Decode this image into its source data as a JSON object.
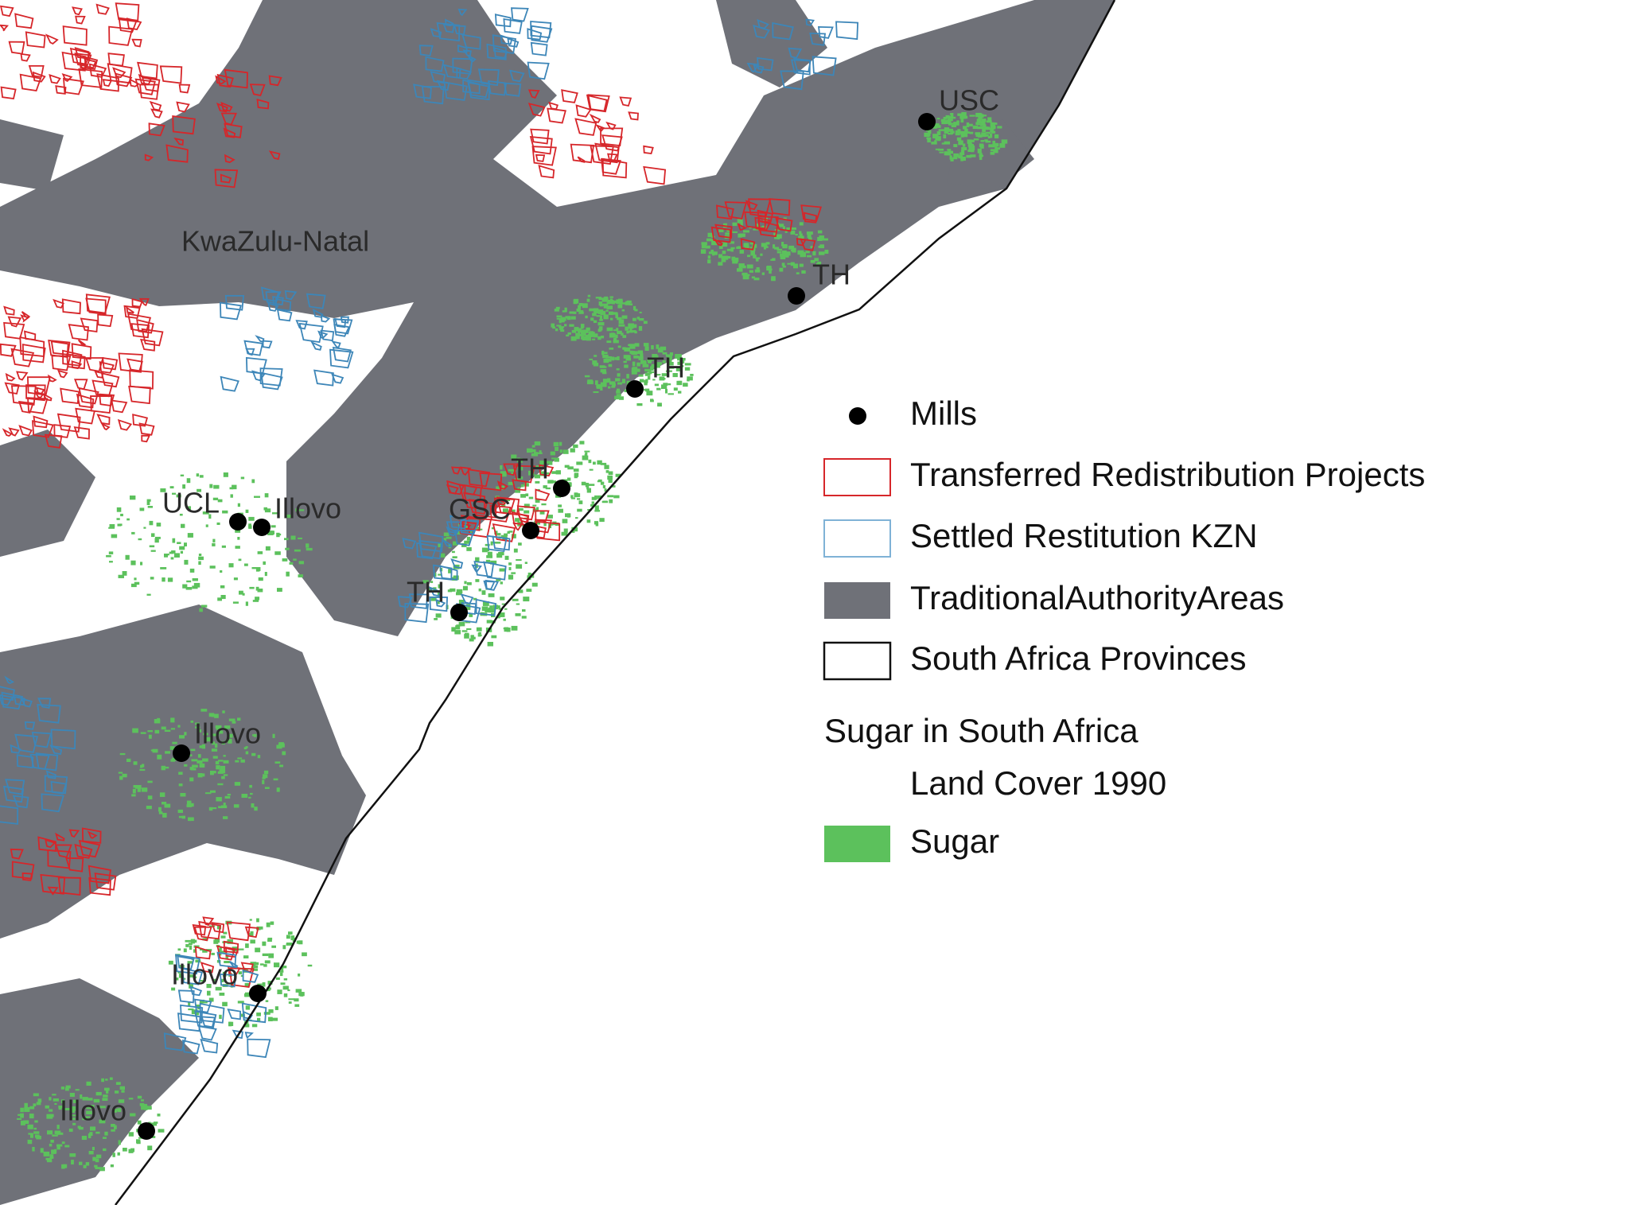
{
  "map": {
    "region_label": "KwaZulu-Natal",
    "mills": [
      "USC",
      "TH",
      "TH",
      "TH",
      "GSC",
      "TH",
      "UCL",
      "Illovo",
      "Illovo",
      "Illovo",
      "Illovo"
    ]
  },
  "legend": {
    "items": [
      "Mills",
      "Transferred Redistribution Projects",
      "Settled Restitution KZN",
      "TraditionalAuthorityAreas",
      "South Africa Provinces"
    ],
    "group_title": "Sugar in South Africa",
    "group_subtitle": "Land Cover 1990",
    "sugar": "Sugar"
  }
}
